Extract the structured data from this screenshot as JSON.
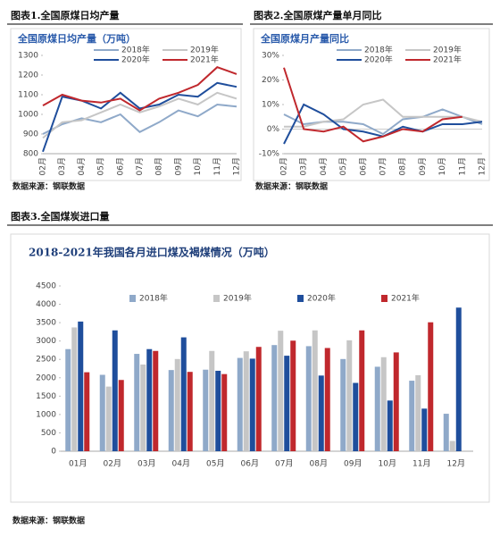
{
  "chart_data": [
    {
      "type": "line",
      "caption": "图表1.全国原煤日均产量",
      "title": "全国原煤日均产量（万吨）",
      "source": "数据来源：钢联数据",
      "categories": [
        "02月",
        "03月",
        "04月",
        "05月",
        "06月",
        "07月",
        "08月",
        "09月",
        "10月",
        "11月",
        "12月"
      ],
      "series": [
        {
          "name": "2018年",
          "color": "#8fa9c9",
          "values": [
            900,
            950,
            980,
            960,
            1000,
            910,
            960,
            1020,
            990,
            1050,
            1040
          ]
        },
        {
          "name": "2019年",
          "color": "#c6c6c6",
          "values": [
            880,
            960,
            970,
            1010,
            1050,
            1010,
            1040,
            1080,
            1050,
            1110,
            1080
          ]
        },
        {
          "name": "2020年",
          "color": "#1f4e9c",
          "values": [
            810,
            1090,
            1070,
            1030,
            1110,
            1030,
            1050,
            1100,
            1090,
            1160,
            1140
          ]
        },
        {
          "name": "2021年",
          "color": "#c0282d",
          "values": [
            1045,
            1100,
            1070,
            1060,
            1080,
            1020,
            1080,
            1110,
            1150,
            1240,
            1205
          ]
        }
      ],
      "ylim": [
        800,
        1300
      ],
      "yticks": [
        800,
        900,
        1000,
        1100,
        1200,
        1300
      ],
      "legend": "upper right"
    },
    {
      "type": "line",
      "caption": "图表2.全国原煤产量单月同比",
      "title": "全国原煤月产量同比",
      "source": "数据来源：钢联数据",
      "categories": [
        "02月",
        "03月",
        "04月",
        "05月",
        "06月",
        "07月",
        "08月",
        "09月",
        "10月",
        "11月",
        "12月"
      ],
      "series": [
        {
          "name": "2018年",
          "color": "#8fa9c9",
          "values": [
            6,
            2,
            3,
            3,
            2,
            -2,
            4,
            5,
            8,
            5,
            2
          ]
        },
        {
          "name": "2019年",
          "color": "#c6c6c6",
          "values": [
            1,
            1,
            3,
            4,
            10,
            12,
            5,
            5,
            5,
            5,
            3
          ]
        },
        {
          "name": "2020年",
          "color": "#1f4e9c",
          "values": [
            -6,
            10,
            6,
            0,
            -1,
            -3,
            1,
            -1,
            2,
            2,
            3
          ]
        },
        {
          "name": "2021年",
          "color": "#c0282d",
          "values": [
            25,
            0,
            -1,
            1,
            -5,
            -3,
            0,
            -1,
            4,
            5,
            null
          ]
        }
      ],
      "ylim": [
        -10,
        30
      ],
      "yticks": [
        {
          "value": -10,
          "label": "-10%"
        },
        {
          "value": 0,
          "label": "0%"
        },
        {
          "value": 10,
          "label": "10%"
        },
        {
          "value": 20,
          "label": "20%"
        },
        {
          "value": 30,
          "label": "30%"
        }
      ],
      "legend": "upper right"
    },
    {
      "type": "bar",
      "caption": "图表3.全国煤炭进口量",
      "title": "2018-2021年我国各月进口煤及褐煤情况（万吨）",
      "source": "数据来源：钢联数据",
      "categories": [
        "01月",
        "02月",
        "03月",
        "04月",
        "05月",
        "06月",
        "07月",
        "08月",
        "09月",
        "10月",
        "11月",
        "12月"
      ],
      "series": [
        {
          "name": "2018年",
          "color": "#8fa9c9",
          "values": [
            2780,
            2080,
            2650,
            2210,
            2220,
            2540,
            2890,
            2860,
            2510,
            2300,
            1920,
            1020
          ]
        },
        {
          "name": "2019年",
          "color": "#c6c6c6",
          "values": [
            3370,
            1760,
            2360,
            2510,
            2730,
            2720,
            3280,
            3290,
            3020,
            2560,
            2070,
            280
          ]
        },
        {
          "name": "2020年",
          "color": "#1f4e9c",
          "values": [
            3530,
            3290,
            2780,
            3100,
            2190,
            2520,
            2600,
            2060,
            1860,
            1380,
            1160,
            3910
          ]
        },
        {
          "name": "2021年",
          "color": "#c0282d",
          "values": [
            2150,
            1940,
            2730,
            2160,
            2100,
            2840,
            3010,
            2810,
            3290,
            2690,
            3510,
            null
          ]
        }
      ],
      "ylim": [
        0,
        4500
      ],
      "yticks": [
        0,
        500,
        1000,
        1500,
        2000,
        2500,
        3000,
        3500,
        4000,
        4500
      ],
      "legend": "top"
    }
  ]
}
